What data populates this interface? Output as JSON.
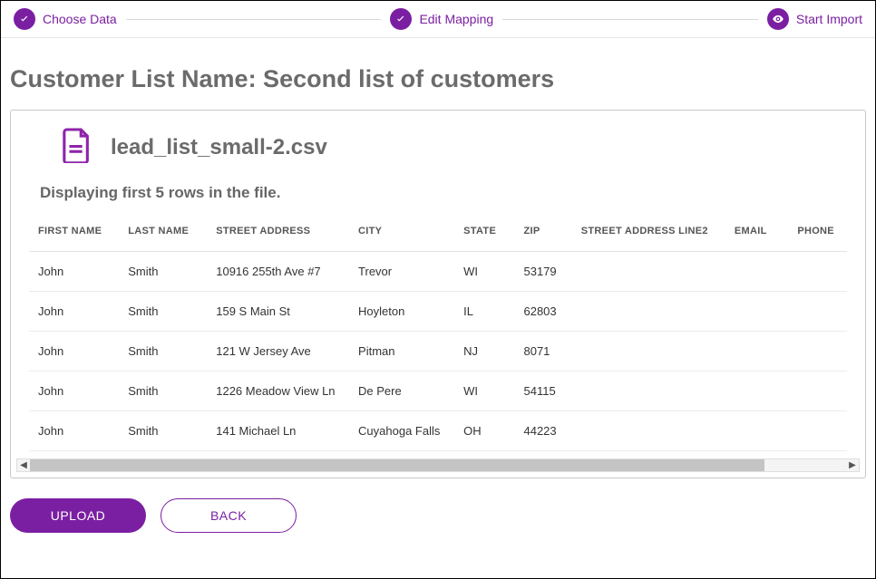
{
  "colors": {
    "accent": "#7b1fa2",
    "text_muted": "#6b6b6b",
    "border": "#c8c8c8"
  },
  "stepper": {
    "steps": [
      {
        "label": "Choose Data",
        "icon": "check"
      },
      {
        "label": "Edit Mapping",
        "icon": "check"
      },
      {
        "label": "Start Import",
        "icon": "eye"
      }
    ]
  },
  "page": {
    "title": "Customer List Name: Second list of customers",
    "file_name": "lead_list_small-2.csv",
    "preview_note": "Displaying first 5 rows in the file."
  },
  "table": {
    "columns": [
      "FIRST NAME",
      "LAST NAME",
      "STREET ADDRESS",
      "CITY",
      "STATE",
      "ZIP",
      "STREET ADDRESS LINE2",
      "EMAIL",
      "PHONE"
    ],
    "rows": [
      [
        "John",
        "Smith",
        "10916 255th Ave #7",
        "Trevor",
        "WI",
        "53179",
        "",
        "",
        ""
      ],
      [
        "John",
        "Smith",
        "159 S Main St",
        "Hoyleton",
        "IL",
        "62803",
        "",
        "",
        ""
      ],
      [
        "John",
        "Smith",
        "121 W Jersey Ave",
        "Pitman",
        "NJ",
        "8071",
        "",
        "",
        ""
      ],
      [
        "John",
        "Smith",
        "1226 Meadow View Ln",
        "De Pere",
        "WI",
        "54115",
        "",
        "",
        ""
      ],
      [
        "John",
        "Smith",
        "141 Michael Ln",
        "Cuyahoga Falls",
        "OH",
        "44223",
        "",
        "",
        ""
      ]
    ]
  },
  "actions": {
    "upload": "UPLOAD",
    "back": "BACK"
  }
}
